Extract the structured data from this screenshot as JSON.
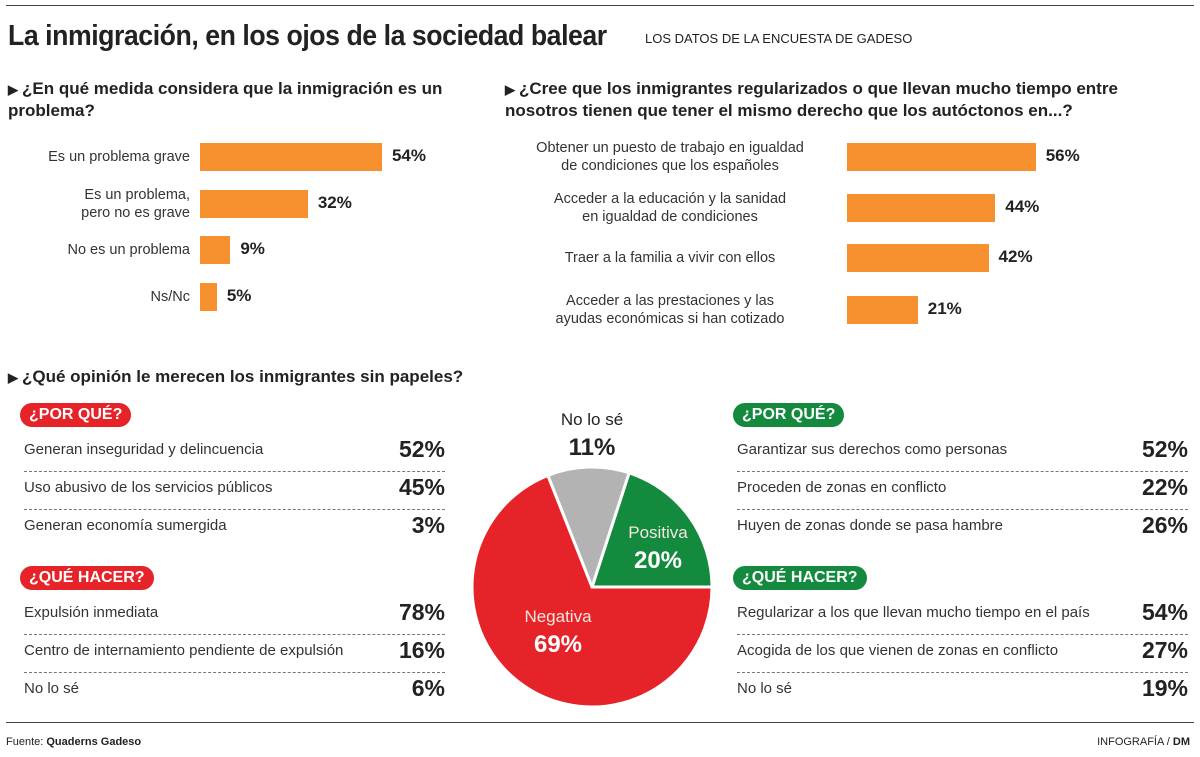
{
  "title": "La inmigración, en los ojos de la sociedad balear",
  "subtitle": "LOS DATOS DE LA ENCUESTA DE GADESO",
  "footer": {
    "source_label": "Fuente:",
    "source": "Quaderns Gadeso",
    "credit": "INFOGRAFÍA / ",
    "credit_brand": "DM"
  },
  "chart_data": [
    {
      "type": "bar",
      "orientation": "horizontal",
      "title": "¿En qué medida considera que la inmigración es un problema?",
      "categories": [
        "Es un problema grave",
        "Es un problema,\npero no es grave",
        "No es un problema",
        "Ns/Nc"
      ],
      "values": [
        54,
        32,
        9,
        5
      ],
      "labels": [
        "54%",
        "32%",
        "9%",
        "5%"
      ],
      "color": "#f7902f"
    },
    {
      "type": "bar",
      "orientation": "horizontal",
      "title": "¿Cree que los inmigrantes regularizados o que llevan mucho tiempo entre nosotros tienen que tener el mismo derecho que los autóctonos en...?",
      "categories": [
        "Obtener un puesto de trabajo en igualdad\nde condiciones que los españoles",
        "Acceder a la educación y la sanidad\nen igualdad de condiciones",
        "Traer a la familia a vivir con ellos",
        "Acceder a las prestaciones y las\nayudas económicas si han cotizado"
      ],
      "values": [
        56,
        44,
        42,
        21
      ],
      "labels": [
        "56%",
        "44%",
        "42%",
        "21%"
      ],
      "color": "#f7902f"
    },
    {
      "type": "pie",
      "title": "¿Qué opinión le merecen los inmigrantes sin papeles?",
      "slices": [
        {
          "name": "Positiva",
          "value": 20,
          "label": "20%",
          "color": "#138a3e"
        },
        {
          "name": "No lo sé",
          "value": 11,
          "label": "11%",
          "color": "#b3b3b3"
        },
        {
          "name": "Negativa",
          "value": 69,
          "label": "69%",
          "color": "#e52329"
        }
      ]
    },
    {
      "type": "table",
      "side": "negative",
      "color": "#e52329",
      "groups": [
        {
          "heading": "¿POR QUÉ?",
          "rows": [
            [
              "Generan inseguridad y delincuencia",
              "52%"
            ],
            [
              "Uso abusivo de los servicios públicos",
              "45%"
            ],
            [
              "Generan economía sumergida",
              "3%"
            ]
          ]
        },
        {
          "heading": "¿QUÉ HACER?",
          "rows": [
            [
              "Expulsión inmediata",
              "78%"
            ],
            [
              "Centro de internamiento pendiente de expulsión",
              "16%"
            ],
            [
              "No lo sé",
              "6%"
            ]
          ]
        }
      ]
    },
    {
      "type": "table",
      "side": "positive",
      "color": "#138a3e",
      "groups": [
        {
          "heading": "¿POR QUÉ?",
          "rows": [
            [
              "Garantizar sus derechos como personas",
              "52%"
            ],
            [
              "Proceden de zonas en conflicto",
              "22%"
            ],
            [
              "Huyen de zonas donde se pasa hambre",
              "26%"
            ]
          ]
        },
        {
          "heading": "¿QUÉ HACER?",
          "rows": [
            [
              "Regularizar a los que llevan mucho tiempo en el país",
              "54%"
            ],
            [
              "Acogida de los que vienen de zonas en conflicto",
              "27%"
            ],
            [
              "No lo sé",
              "19%"
            ]
          ]
        }
      ]
    }
  ]
}
